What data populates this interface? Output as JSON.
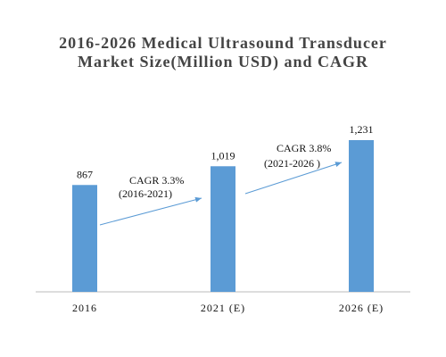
{
  "chart_data": {
    "type": "bar",
    "title": "2016-2026 Medical Ultrasound Transducer Market Size(Million USD) and CAGR",
    "categories": [
      "2016",
      "2021 (E)",
      "2026 (E)"
    ],
    "values": [
      867,
      1019,
      1231
    ],
    "value_labels": [
      "867",
      "1,019",
      "1,231"
    ],
    "color": "#5b9bd5",
    "annotations": [
      "CAGR 3.3%",
      "(2016-2021)",
      "CAGR 3.8%",
      "(2021-2026 )"
    ]
  }
}
